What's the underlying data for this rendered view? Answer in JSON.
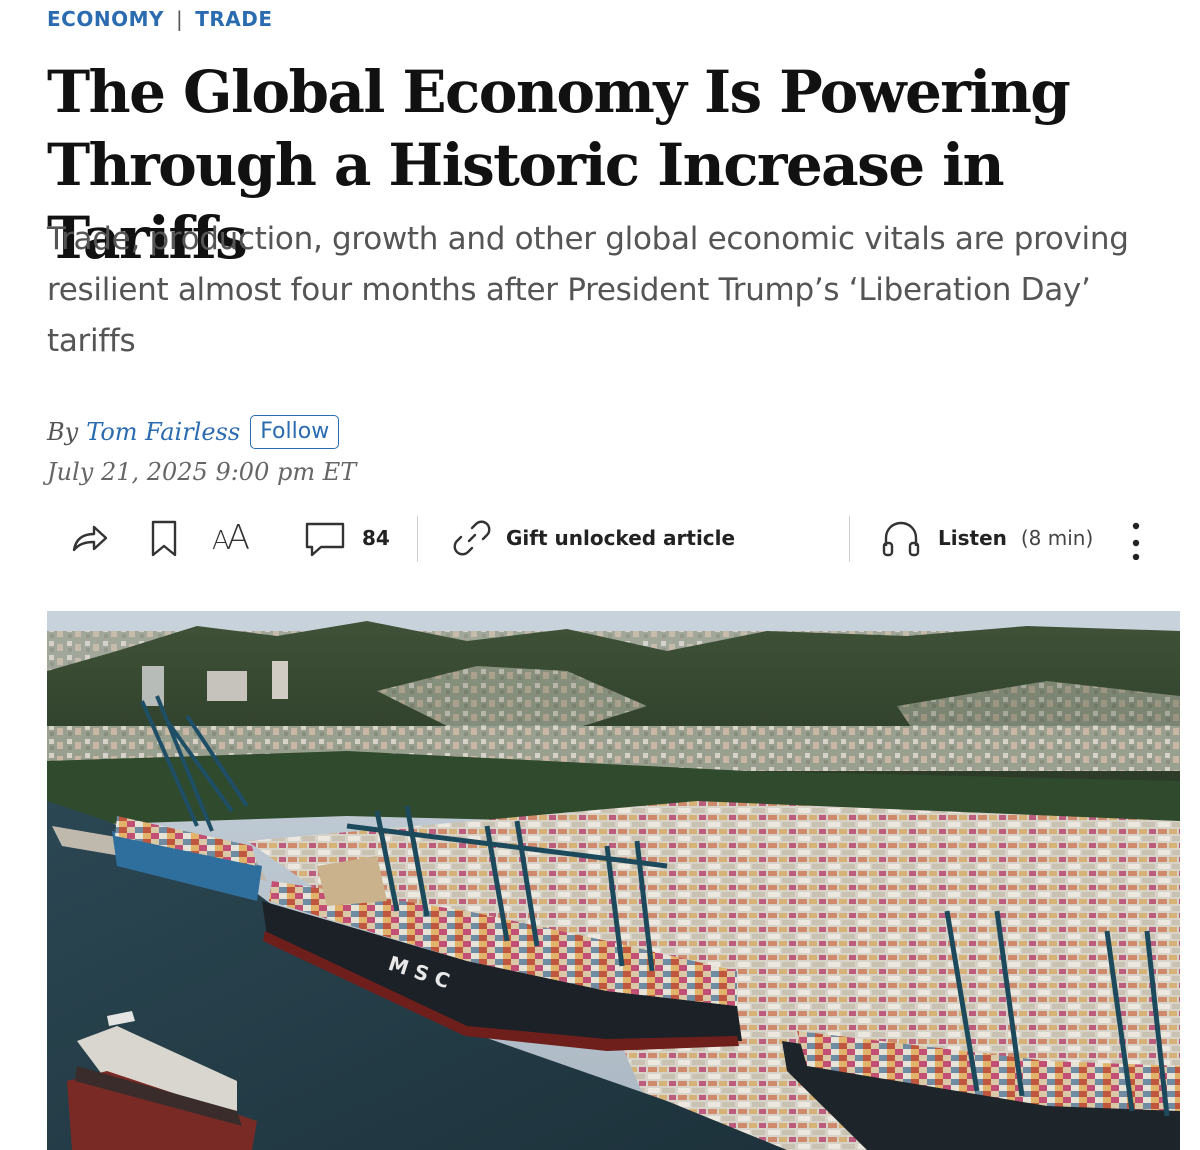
{
  "breadcrumb": {
    "section": "ECONOMY",
    "subsection": "TRADE"
  },
  "article": {
    "headline": "The Global Economy Is Powering Through a Historic Increase in Tariffs",
    "dek": "Trade, production, growth and other global economic vitals are proving resilient almost four months after President Trump’s ‘Liberation Day’ tariffs",
    "byline_prefix": "By",
    "author": "Tom Fairless",
    "follow_label": "Follow",
    "date": "July 21, 2025 9:00 pm ET"
  },
  "toolbar": {
    "share_icon": "share-arrow-icon",
    "bookmark_icon": "bookmark-icon",
    "text_size_label": "AA",
    "comment_count": "84",
    "gift_label": "Gift unlocked article",
    "listen_label": "Listen",
    "listen_duration": "(8 min)"
  },
  "hero_image": {
    "ship_lettering": "M S C"
  }
}
